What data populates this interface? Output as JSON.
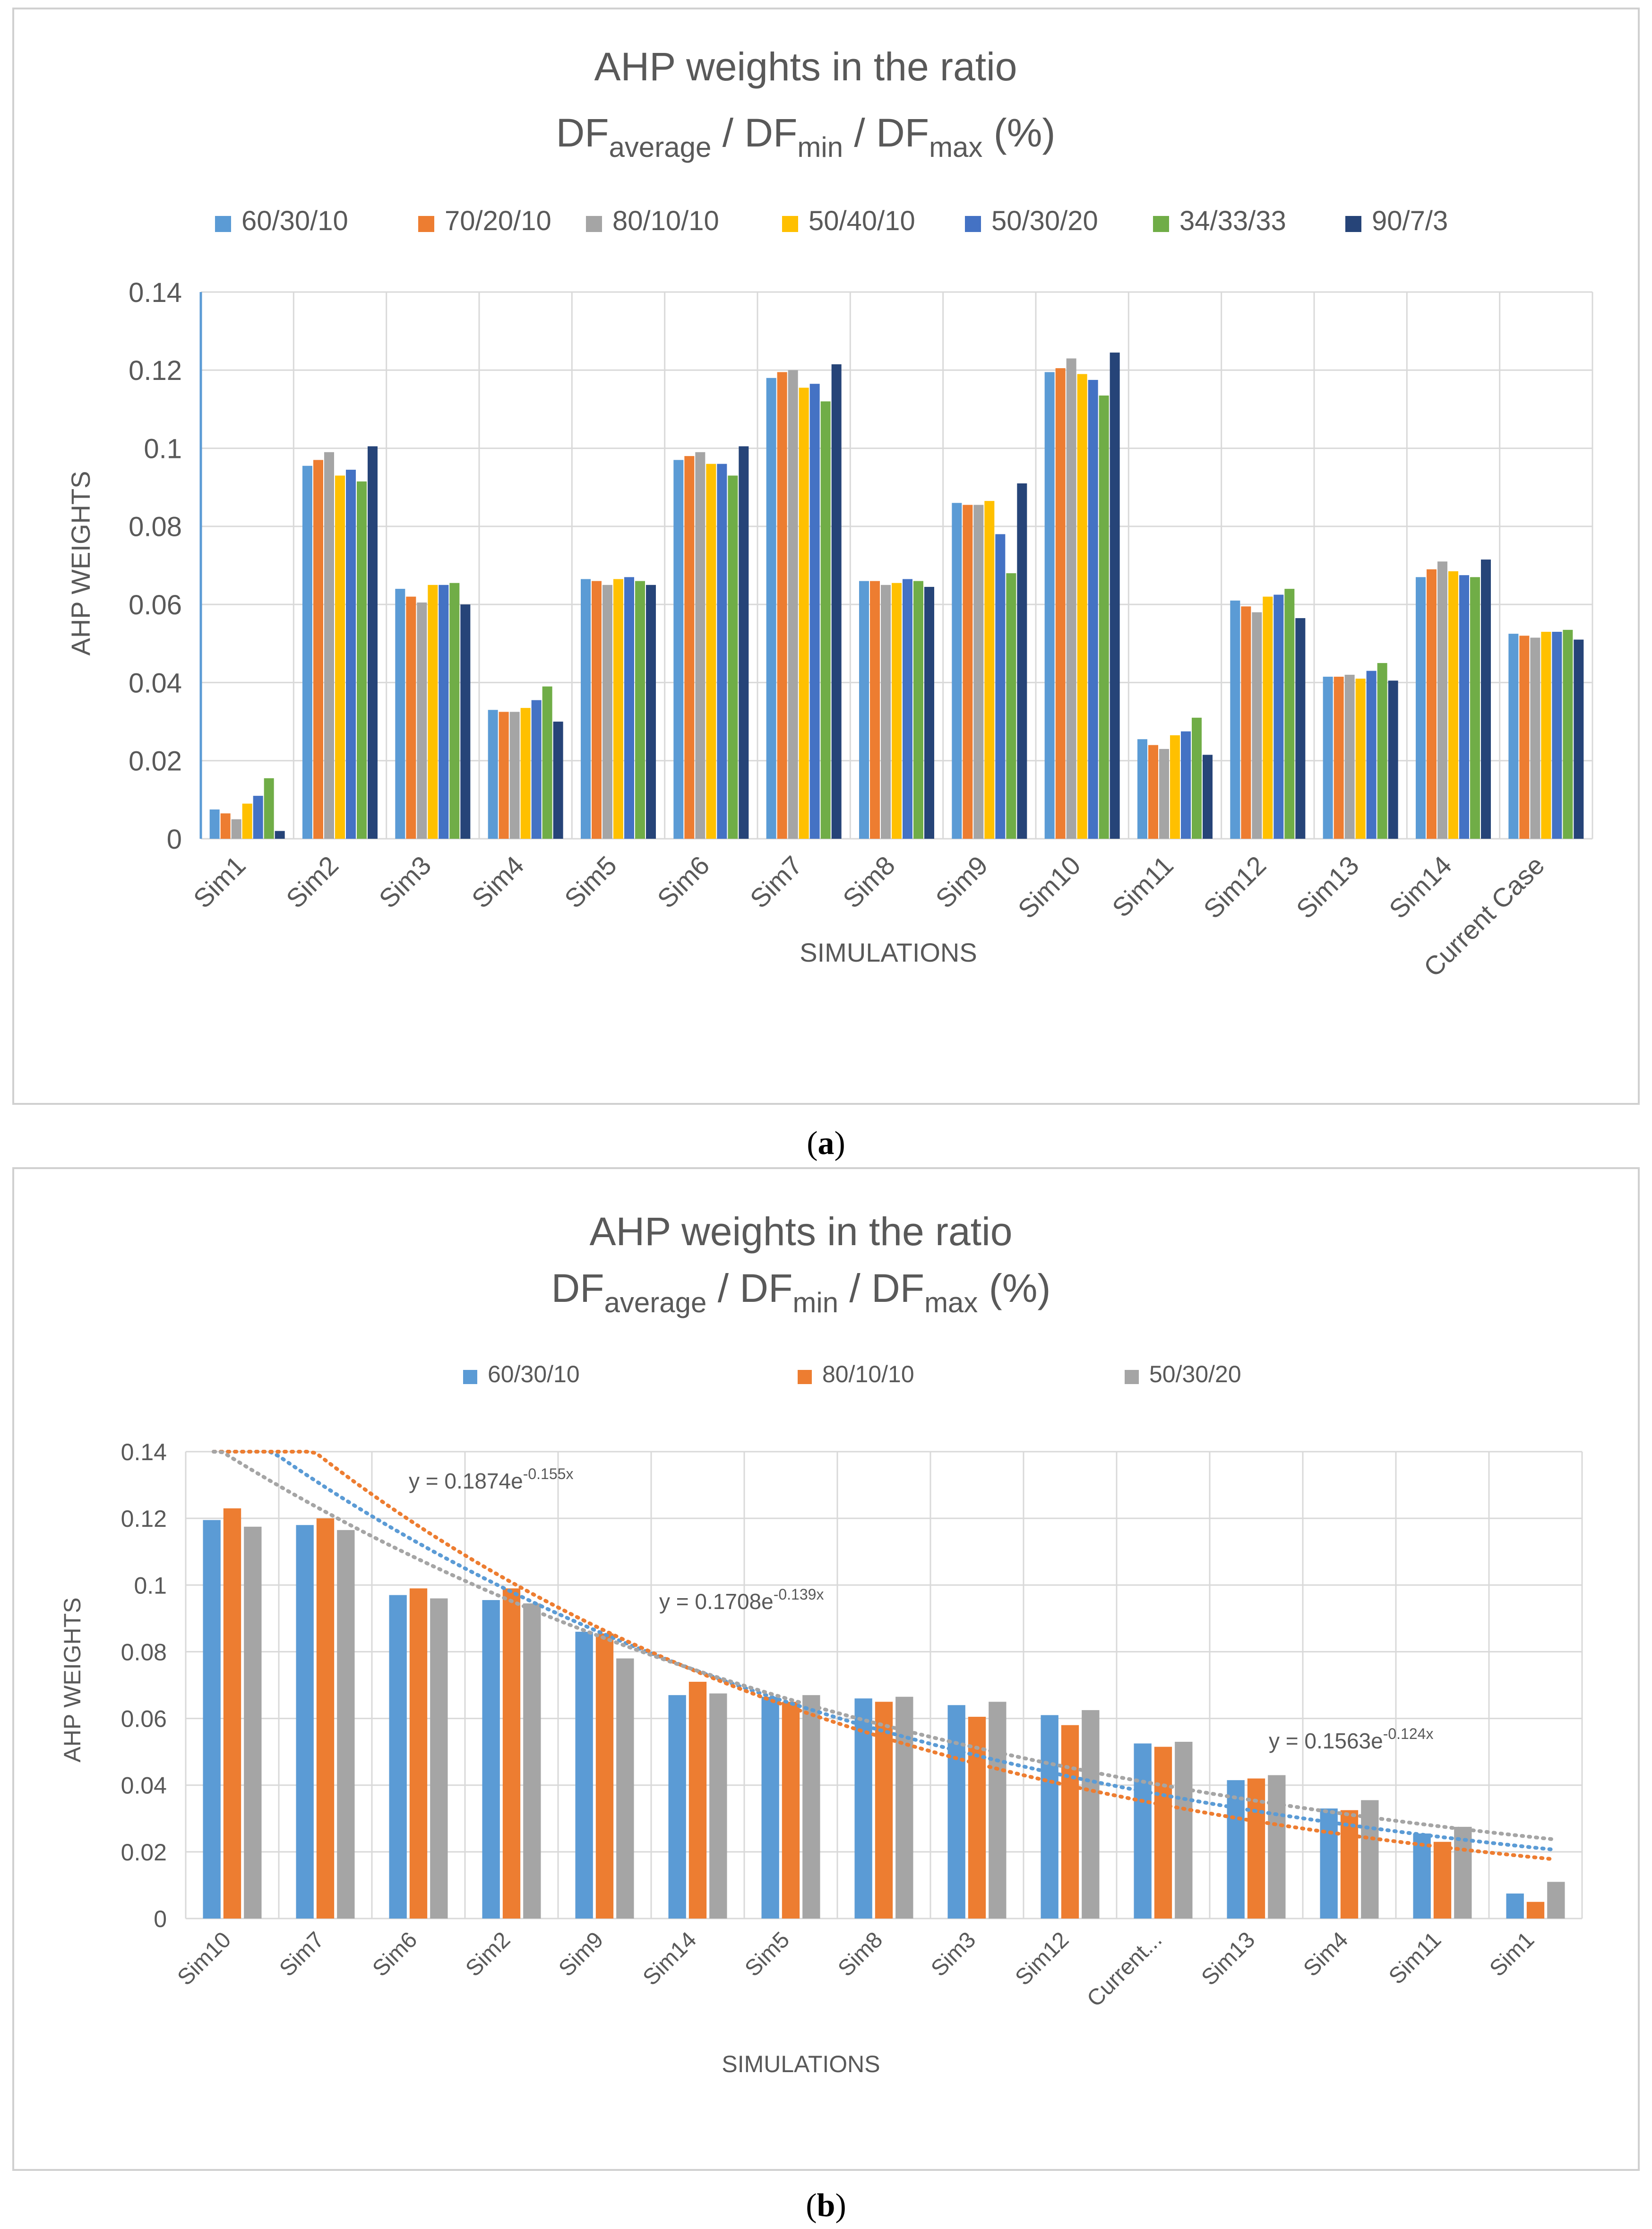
{
  "panel_a_label": "a",
  "panel_b_label": "b",
  "chart_data": [
    {
      "type": "bar",
      "title_line1": "AHP weights in the ratio",
      "title_line2": {
        "p1": "DF",
        "s1": "average",
        "p2": " / DF",
        "s2": "min",
        "p3": " / DF",
        "s3": "max",
        "p4": " (%)"
      },
      "xlabel": "SIMULATIONS",
      "ylabel": "AHP WEIGHTS",
      "ylim": [
        0,
        0.14
      ],
      "yticks": [
        "0",
        "0.02",
        "0.04",
        "0.06",
        "0.08",
        "0.1",
        "0.12",
        "0.14"
      ],
      "categories": [
        "Sim1",
        "Sim2",
        "Sim3",
        "Sim4",
        "Sim5",
        "Sim6",
        "Sim7",
        "Sim8",
        "Sim9",
        "Sim10",
        "Sim11",
        "Sim12",
        "Sim13",
        "Sim14",
        "Current Case"
      ],
      "series": [
        {
          "name": "60/30/10",
          "color": "#5b9bd5",
          "values": [
            0.0075,
            0.0955,
            0.064,
            0.033,
            0.0665,
            0.097,
            0.118,
            0.066,
            0.086,
            0.1195,
            0.0255,
            0.061,
            0.0415,
            0.067,
            0.0525
          ]
        },
        {
          "name": "70/20/10",
          "color": "#ed7d31",
          "values": [
            0.0065,
            0.097,
            0.062,
            0.0325,
            0.066,
            0.098,
            0.1195,
            0.066,
            0.0855,
            0.1205,
            0.024,
            0.0595,
            0.0415,
            0.069,
            0.052
          ]
        },
        {
          "name": "80/10/10",
          "color": "#a5a5a5",
          "values": [
            0.005,
            0.099,
            0.0605,
            0.0325,
            0.065,
            0.099,
            0.12,
            0.065,
            0.0855,
            0.123,
            0.023,
            0.058,
            0.042,
            0.071,
            0.0515
          ]
        },
        {
          "name": "50/40/10",
          "color": "#ffc000",
          "values": [
            0.009,
            0.093,
            0.065,
            0.0335,
            0.0665,
            0.096,
            0.1155,
            0.0655,
            0.0865,
            0.119,
            0.0265,
            0.062,
            0.041,
            0.0685,
            0.053
          ]
        },
        {
          "name": "50/30/20",
          "color": "#4472c4",
          "values": [
            0.011,
            0.0945,
            0.065,
            0.0355,
            0.067,
            0.096,
            0.1165,
            0.0665,
            0.078,
            0.1175,
            0.0275,
            0.0625,
            0.043,
            0.0675,
            0.053
          ]
        },
        {
          "name": "34/33/33",
          "color": "#70ad47",
          "values": [
            0.0155,
            0.0915,
            0.0655,
            0.039,
            0.066,
            0.093,
            0.112,
            0.066,
            0.068,
            0.1135,
            0.031,
            0.064,
            0.045,
            0.067,
            0.0535
          ]
        },
        {
          "name": "90/7/3",
          "color": "#264478",
          "values": [
            0.002,
            0.1005,
            0.06,
            0.03,
            0.065,
            0.1005,
            0.1215,
            0.0645,
            0.091,
            0.1245,
            0.0215,
            0.0565,
            0.0405,
            0.0715,
            0.051
          ]
        }
      ]
    },
    {
      "type": "bar",
      "title_line1": "AHP weights in the ratio",
      "title_line2": {
        "p1": "DF",
        "s1": "average",
        "p2": " / DF",
        "s2": "min",
        "p3": " / DF",
        "s3": "max",
        "p4": " (%)"
      },
      "xlabel": "SIMULATIONS",
      "ylabel": "AHP WEIGHTS",
      "ylim": [
        0,
        0.14
      ],
      "yticks": [
        "0",
        "0.02",
        "0.04",
        "0.06",
        "0.08",
        "0.1",
        "0.12",
        "0.14"
      ],
      "categories": [
        "Sim10",
        "Sim7",
        "Sim6",
        "Sim2",
        "Sim9",
        "Sim14",
        "Sim5",
        "Sim8",
        "Sim3",
        "Sim12",
        "Current...",
        "Sim13",
        "Sim4",
        "Sim11",
        "Sim1"
      ],
      "series": [
        {
          "name": "60/30/10",
          "color": "#5b9bd5",
          "values": [
            0.1195,
            0.118,
            0.097,
            0.0955,
            0.086,
            0.067,
            0.0665,
            0.066,
            0.064,
            0.061,
            0.0525,
            0.0415,
            0.033,
            0.0255,
            0.0075
          ]
        },
        {
          "name": "80/10/10",
          "color": "#ed7d31",
          "values": [
            0.123,
            0.12,
            0.099,
            0.099,
            0.0855,
            0.071,
            0.065,
            0.065,
            0.0605,
            0.058,
            0.0515,
            0.042,
            0.0325,
            0.023,
            0.005
          ]
        },
        {
          "name": "50/30/20",
          "color": "#a5a5a5",
          "values": [
            0.1175,
            0.1165,
            0.096,
            0.0945,
            0.078,
            0.0675,
            0.067,
            0.0665,
            0.065,
            0.0625,
            0.053,
            0.043,
            0.0355,
            0.0275,
            0.011
          ]
        }
      ],
      "trendlines": [
        {
          "series": "60/30/10",
          "color": "#5b9bd5",
          "a": 0.1708,
          "b": -0.139,
          "label_base": "y = 0.1708e",
          "label_exp": "-0.139x"
        },
        {
          "series": "80/10/10",
          "color": "#ed7d31",
          "a": 0.1874,
          "b": -0.155,
          "label_base": "y = 0.1874e",
          "label_exp": "-0.155x"
        },
        {
          "series": "50/30/20",
          "color": "#a5a5a5",
          "a": 0.1563,
          "b": -0.124,
          "label_base": "y = 0.1563e",
          "label_exp": "-0.124x"
        }
      ]
    }
  ]
}
